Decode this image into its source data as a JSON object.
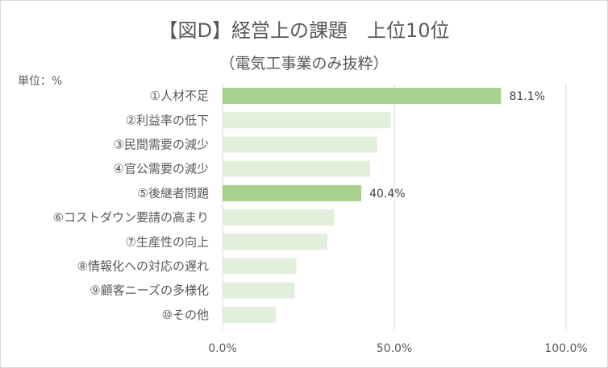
{
  "chart_data": {
    "type": "bar",
    "orientation": "horizontal",
    "title": "【図D】経営上の課題　上位10位",
    "subtitle": "（電気工事業のみ抜粋）",
    "unit_label": "単位：%",
    "categories": [
      "①人材不足",
      "②利益率の低下",
      "③民間需要の減少",
      "④官公需要の減少",
      "⑤後継者問題",
      "⑥コストダウン要請の高まり",
      "⑦生産性の向上",
      "⑧情報化への対応の遅れ",
      "⑨顧客ニーズの多様化",
      "⑩その他"
    ],
    "values": [
      81.1,
      49.0,
      45.0,
      43.0,
      40.4,
      32.5,
      30.5,
      21.5,
      21.0,
      15.5
    ],
    "data_labels": [
      "81.1%",
      "",
      "",
      "",
      "40.4%",
      "",
      "",
      "",
      "",
      ""
    ],
    "highlighted": [
      true,
      false,
      false,
      false,
      true,
      false,
      false,
      false,
      false,
      false
    ],
    "xlim": [
      0,
      100
    ],
    "xticks": [
      "0.0%",
      "50.0%",
      "100.0%"
    ],
    "grid": true,
    "colors": {
      "highlight": "#a9d18e",
      "normal": "#e2efda",
      "grid": "#d9d9d9"
    }
  }
}
